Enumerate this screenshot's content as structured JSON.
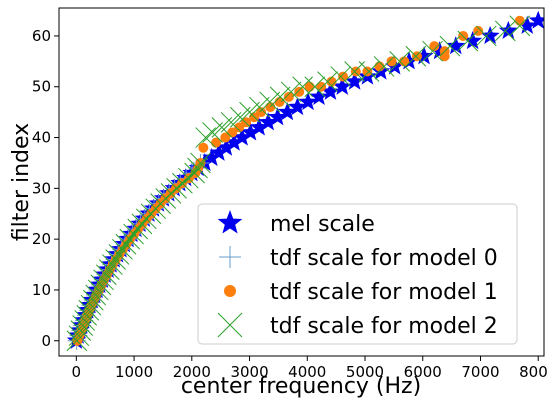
{
  "chart_data": {
    "type": "scatter",
    "title": "",
    "xlabel": "center frequency (Hz)",
    "ylabel": "filter index",
    "xlim": [
      -300,
      8100
    ],
    "ylim": [
      -3,
      65.5
    ],
    "xticks": [
      0,
      1000,
      2000,
      3000,
      4000,
      5000,
      6000,
      7000,
      8000
    ],
    "yticks": [
      0,
      10,
      20,
      30,
      40,
      50,
      60
    ],
    "grid": false,
    "legend_position": "lower-right",
    "series": [
      {
        "name": "mel scale",
        "marker": "star",
        "color": "#0000ee",
        "x": [
          0,
          30,
          61,
          93,
          127,
          162,
          198,
          236,
          276,
          317,
          360,
          404,
          451,
          499,
          549,
          601,
          656,
          713,
          772,
          833,
          897,
          963,
          1032,
          1104,
          1179,
          1257,
          1337,
          1421,
          1509,
          1600,
          1694,
          1792,
          1894,
          2000,
          2111,
          2225,
          2345,
          2469,
          2598,
          2732,
          2871,
          3016,
          3166,
          3323,
          3486,
          3655,
          3830,
          4013,
          4203,
          4401,
          4606,
          4820,
          5042,
          5273,
          5513,
          5763,
          6022,
          6292,
          6572,
          6864,
          7167,
          7482,
          7810,
          8000
        ],
        "y": [
          0,
          1,
          2,
          3,
          4,
          5,
          6,
          7,
          8,
          9,
          10,
          11,
          12,
          13,
          14,
          15,
          16,
          17,
          18,
          19,
          20,
          21,
          22,
          23,
          24,
          25,
          26,
          27,
          28,
          29,
          30,
          31,
          32,
          33,
          34,
          35,
          36,
          37,
          38,
          39,
          40,
          41,
          42,
          43,
          44,
          45,
          46,
          47,
          48,
          49,
          50,
          51,
          52,
          53,
          54,
          55,
          56,
          57,
          58,
          59,
          60,
          61,
          62,
          63
        ]
      },
      {
        "name": "tdf scale for model 0",
        "marker": "plus",
        "color": "#6a9ccc",
        "x": [
          5,
          38,
          70,
          100,
          135,
          170,
          206,
          244,
          284,
          325,
          368,
          412,
          459,
          507,
          557,
          609,
          664,
          721,
          780,
          841,
          905,
          971,
          1040,
          1112,
          1187,
          1265,
          1345,
          1429,
          1517,
          1608,
          1702,
          1800,
          1902,
          2005,
          2100,
          2150
        ],
        "y": [
          0,
          1,
          2,
          3,
          4,
          5,
          6,
          7,
          8,
          9,
          10,
          11,
          12,
          13,
          14,
          15,
          16,
          17,
          18,
          19,
          20,
          21,
          22,
          23,
          24,
          25,
          26,
          27,
          28,
          29,
          30,
          31,
          32,
          33,
          34,
          35
        ]
      },
      {
        "name": "tdf scale for model 1",
        "marker": "circle",
        "color": "#ff7f0e",
        "x": [
          20,
          55,
          90,
          120,
          155,
          190,
          225,
          265,
          305,
          345,
          390,
          435,
          480,
          530,
          580,
          630,
          685,
          745,
          805,
          865,
          930,
          1000,
          1070,
          1140,
          1215,
          1295,
          1375,
          1455,
          1540,
          1630,
          1725,
          1830,
          1950,
          2060,
          2110,
          2150,
          2200,
          2420,
          2580,
          2700,
          2820,
          2940,
          3080,
          3200,
          3360,
          3520,
          3680,
          3860,
          4040,
          4240,
          4420,
          4620,
          4840,
          5040,
          5250,
          5460,
          5680,
          5900,
          6200,
          6380,
          6380,
          6700,
          6960,
          7680
        ],
        "y": [
          0,
          1,
          2,
          3,
          4,
          5,
          6,
          7,
          8,
          9,
          10,
          11,
          12,
          13,
          14,
          15,
          16,
          17,
          18,
          19,
          20,
          21,
          22,
          23,
          24,
          25,
          26,
          27,
          28,
          29,
          30,
          31,
          32,
          33,
          34,
          35,
          38,
          39,
          40,
          41,
          42,
          43,
          44,
          45,
          46,
          47,
          48,
          49,
          50,
          50,
          51,
          52,
          53,
          53,
          54,
          55,
          55,
          56,
          58,
          56,
          57,
          60,
          61,
          63
        ]
      },
      {
        "name": "tdf scale for model 2",
        "marker": "x",
        "color": "#2ca02c",
        "x": [
          10,
          45,
          78,
          110,
          145,
          180,
          216,
          254,
          294,
          336,
          380,
          425,
          472,
          520,
          571,
          624,
          680,
          738,
          798,
          860,
          925,
          992,
          1063,
          1136,
          1212,
          1292,
          1374,
          1460,
          1549,
          1641,
          1737,
          1837,
          1941,
          2049,
          2100,
          2150,
          2240,
          2360,
          2520,
          2680,
          2840,
          3000,
          3170,
          3350,
          3530,
          3720,
          3920,
          4130,
          4350,
          4580,
          4820,
          5070,
          5330,
          5600,
          5880,
          6170,
          6470,
          6780,
          7100,
          7430,
          7680
        ],
        "y": [
          0,
          1,
          2,
          3,
          4,
          5,
          6,
          7,
          8,
          9,
          10,
          11,
          12,
          13,
          14,
          15,
          16,
          17,
          18,
          19,
          20,
          21,
          22,
          23,
          24,
          25,
          26,
          27,
          28,
          29,
          30,
          31,
          32,
          33,
          34,
          35,
          40,
          41,
          42,
          43,
          44,
          45,
          46,
          47,
          48,
          49,
          50,
          50,
          51,
          52,
          53,
          53,
          54,
          55,
          56,
          57,
          58,
          59,
          60,
          61,
          62
        ]
      }
    ]
  }
}
